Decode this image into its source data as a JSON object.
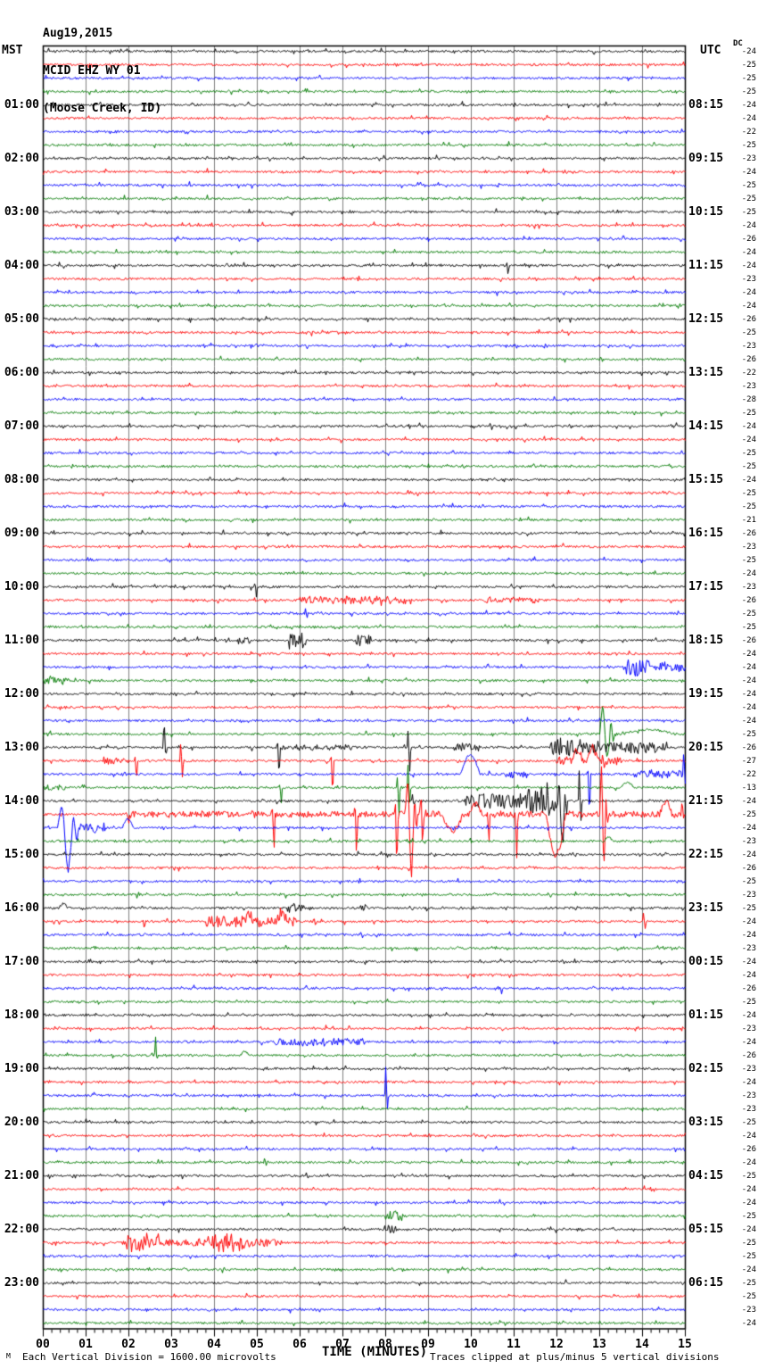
{
  "header": {
    "date": "Aug19,2015",
    "station": "MCID EHZ WY 01",
    "location": "(Moose Creek, ID)"
  },
  "axes": {
    "left_label": "MST",
    "right_label": "UTC",
    "dc_label": "DC"
  },
  "x_axis": {
    "title": "TIME (MINUTES)",
    "tick_labels": [
      "00",
      "01",
      "02",
      "03",
      "04",
      "05",
      "06",
      "07",
      "08",
      "09",
      "10",
      "11",
      "12",
      "13",
      "14",
      "15"
    ]
  },
  "footer": {
    "watermark": "M",
    "division_note": "Each Vertical Division = 1600.00 microvolts",
    "clip_note": "Traces clipped at plus/minus 5 vertical divisions"
  },
  "colors": {
    "trace_cycle": [
      "#000000",
      "#ff0000",
      "#0000ff",
      "#007a00"
    ],
    "grid": "#808080",
    "border": "#000000",
    "background": "#ffffff"
  },
  "chart_data": {
    "type": "line",
    "subtype": "helicorder_seismogram",
    "title": "MCID EHZ WY 01 (Moose Creek, ID) Aug19,2015",
    "station": "MCID EHZ WY 01",
    "date": "Aug19,2015",
    "location": "(Moose Creek, ID)",
    "lines": 96,
    "minutes_per_line": 15,
    "x_range": [
      0,
      15
    ],
    "x_major_tick": 1,
    "x_minor_tick": 0.2,
    "hour_label_row_step": 4,
    "left_hour_labels": [
      "01:00",
      "02:00",
      "03:00",
      "04:00",
      "05:00",
      "06:00",
      "07:00",
      "08:00",
      "09:00",
      "10:00",
      "11:00",
      "12:00",
      "13:00",
      "14:00",
      "15:00",
      "16:00",
      "17:00",
      "18:00",
      "19:00",
      "20:00",
      "21:00",
      "22:00",
      "23:00"
    ],
    "right_hour_labels": [
      "08:15",
      "09:15",
      "10:15",
      "11:15",
      "12:15",
      "13:15",
      "14:15",
      "15:15",
      "16:15",
      "17:15",
      "18:15",
      "19:15",
      "20:15",
      "21:15",
      "22:15",
      "23:15",
      "00:15",
      "01:15",
      "02:15",
      "03:15",
      "04:15",
      "05:15",
      "06:15"
    ],
    "dc_offsets": [
      -24,
      -25,
      -25,
      -25,
      -24,
      -24,
      -22,
      -25,
      -23,
      -24,
      -25,
      -25,
      -25,
      -24,
      -26,
      -24,
      -24,
      -23,
      -24,
      -24,
      -26,
      -25,
      -23,
      -26,
      -22,
      -23,
      -28,
      -25,
      -24,
      -24,
      -25,
      -25,
      -24,
      -25,
      -25,
      -21,
      -26,
      -23,
      -25,
      -24,
      -23,
      -26,
      -25,
      -25,
      -26,
      -24,
      -24,
      -24,
      -24,
      -24,
      -24,
      -25,
      -26,
      -27,
      -22,
      -13,
      -24,
      -25,
      -24,
      -23,
      -24,
      -26,
      -25,
      -23,
      -25,
      -24,
      -24,
      -23,
      -24,
      -24,
      -26,
      -25,
      -24,
      -23,
      -24,
      -26,
      -23,
      -24,
      -23,
      -23,
      -25,
      -24,
      -26,
      -24,
      -25,
      -24,
      -24,
      -25,
      -24,
      -25,
      -25,
      -24,
      -25,
      -25,
      -23,
      -24
    ],
    "events": [
      {
        "row": 16,
        "type": "spike",
        "t": 10.8,
        "up": 3,
        "down": 12
      },
      {
        "row": 40,
        "type": "spike",
        "t": 4.92,
        "up": 6,
        "down": 12
      },
      {
        "row": 41,
        "type": "burst",
        "t0": 6.0,
        "t1": 8.6,
        "amp": 4
      },
      {
        "row": 41,
        "type": "burst",
        "t0": 10.3,
        "t1": 11.6,
        "amp": 3
      },
      {
        "row": 42,
        "type": "spike",
        "t": 6.1,
        "up": 7,
        "down": 5
      },
      {
        "row": 44,
        "type": "burst",
        "t0": 4.55,
        "t1": 4.85,
        "amp": 4
      },
      {
        "row": 44,
        "type": "burst",
        "t0": 5.75,
        "t1": 6.15,
        "amp": 9
      },
      {
        "row": 44,
        "type": "burst",
        "t0": 7.3,
        "t1": 7.65,
        "amp": 6
      },
      {
        "row": 46,
        "type": "burst",
        "t0": 13.55,
        "t1": 14.15,
        "amp": 10
      },
      {
        "row": 46,
        "type": "burst",
        "t0": 14.3,
        "t1": 15,
        "amp": 5
      },
      {
        "row": 47,
        "type": "burst",
        "t0": 0,
        "t1": 0.6,
        "amp": 4
      },
      {
        "row": 51,
        "type": "spike",
        "t": 13.0,
        "up": 35,
        "down": 28,
        "osc": 3,
        "w": 0.35
      },
      {
        "row": 51,
        "type": "bump",
        "t": 13.55,
        "dur": 1.2,
        "amp": 5
      },
      {
        "row": 52,
        "type": "spike",
        "t": 2.8,
        "up": 38,
        "down": 8
      },
      {
        "row": 52,
        "type": "spike",
        "t": 5.45,
        "up": 6,
        "down": 38
      },
      {
        "row": 52,
        "type": "spike",
        "t": 8.5,
        "up": 20,
        "down": 30
      },
      {
        "row": 52,
        "type": "burst",
        "t0": 5.5,
        "t1": 7.2,
        "amp": 3
      },
      {
        "row": 52,
        "type": "burst",
        "t0": 9.6,
        "t1": 10.2,
        "amp": 4
      },
      {
        "row": 52,
        "type": "burst",
        "t0": 11.85,
        "t1": 12.7,
        "amp": 10
      },
      {
        "row": 52,
        "type": "burst",
        "t0": 12.7,
        "t1": 14.6,
        "amp": 6
      },
      {
        "row": 53,
        "type": "spike",
        "t": 2.12,
        "up": 4,
        "down": 22
      },
      {
        "row": 53,
        "type": "spike",
        "t": 3.19,
        "up": 25,
        "down": 18
      },
      {
        "row": 53,
        "type": "spike",
        "t": 6.7,
        "up": 6,
        "down": 45
      },
      {
        "row": 53,
        "type": "burst",
        "t0": 1.4,
        "t1": 1.9,
        "amp": 4
      },
      {
        "row": 53,
        "type": "bump",
        "t": 12.35,
        "dur": 0.25,
        "amp": 12
      },
      {
        "row": 53,
        "type": "bump",
        "t": 12.7,
        "dur": 0.25,
        "amp": 15
      },
      {
        "row": 53,
        "type": "spike",
        "t": 13.05,
        "up": 4,
        "down": 13
      },
      {
        "row": 53,
        "type": "burst",
        "t0": 11.95,
        "t1": 13.5,
        "amp": 4
      },
      {
        "row": 54,
        "type": "bump",
        "t": 9.75,
        "dur": 0.45,
        "amp": 22
      },
      {
        "row": 54,
        "type": "burst",
        "t0": 10.8,
        "t1": 11.3,
        "amp": 4
      },
      {
        "row": 54,
        "type": "spike",
        "t": 12.7,
        "up": 5,
        "down": 55
      },
      {
        "row": 54,
        "type": "spike",
        "t": 14.94,
        "up": 25,
        "down": 12
      },
      {
        "row": 54,
        "type": "burst",
        "t0": 13.8,
        "t1": 15,
        "amp": 4
      },
      {
        "row": 55,
        "type": "burst",
        "t0": 0,
        "t1": 0.5,
        "amp": 4
      },
      {
        "row": 55,
        "type": "spike",
        "t": 5.5,
        "up": 4,
        "down": 20
      },
      {
        "row": 55,
        "type": "spike",
        "t": 8.25,
        "up": 12,
        "down": 35
      },
      {
        "row": 55,
        "type": "spike",
        "t": 8.5,
        "up": 30,
        "down": 18
      },
      {
        "row": 55,
        "type": "bump",
        "t": 13.5,
        "dur": 0.3,
        "amp": 6
      },
      {
        "row": 56,
        "type": "spike",
        "t": 8.6,
        "up": 8,
        "down": 5
      },
      {
        "row": 56,
        "type": "burst",
        "t0": 9.85,
        "t1": 11.3,
        "amp": 8
      },
      {
        "row": 56,
        "type": "burst",
        "t0": 11.3,
        "t1": 12.15,
        "amp": 14
      },
      {
        "row": 56,
        "type": "spike",
        "t": 11.75,
        "up": 35,
        "down": 20
      },
      {
        "row": 56,
        "type": "spike",
        "t": 12.0,
        "up": 18,
        "down": 55,
        "osc": 2,
        "w": 0.25
      },
      {
        "row": 56,
        "type": "spike",
        "t": 12.5,
        "up": 40,
        "down": 25
      },
      {
        "row": 57,
        "type": "burst",
        "t0": 1.9,
        "t1": 15,
        "amp": 3
      },
      {
        "row": 57,
        "type": "spike",
        "t": 1.94,
        "up": 3,
        "down": 9
      },
      {
        "row": 57,
        "type": "spike",
        "t": 5.33,
        "up": 6,
        "down": 45
      },
      {
        "row": 57,
        "type": "spike",
        "t": 7.26,
        "up": 8,
        "down": 55
      },
      {
        "row": 57,
        "type": "spike",
        "t": 8.2,
        "up": 15,
        "down": 70
      },
      {
        "row": 57,
        "type": "spike",
        "t": 8.45,
        "up": 40,
        "down": 72,
        "osc": 3,
        "w": 0.3
      },
      {
        "row": 57,
        "type": "spike",
        "t": 8.8,
        "up": 30,
        "down": 40
      },
      {
        "row": 57,
        "type": "bump",
        "t": 9.3,
        "dur": 0.5,
        "amp": -18
      },
      {
        "row": 57,
        "type": "bump",
        "t": 9.95,
        "dur": 0.3,
        "amp": 12
      },
      {
        "row": 57,
        "type": "spike",
        "t": 10.35,
        "up": 5,
        "down": 38
      },
      {
        "row": 57,
        "type": "spike",
        "t": 11.0,
        "up": 6,
        "down": 55
      },
      {
        "row": 57,
        "type": "bump",
        "t": 11.75,
        "dur": 0.45,
        "amp": -45
      },
      {
        "row": 57,
        "type": "spike",
        "t": 13.0,
        "up": 55,
        "down": 60,
        "osc": 2,
        "w": 0.2
      },
      {
        "row": 57,
        "type": "bump",
        "t": 14.4,
        "dur": 0.3,
        "amp": 14
      },
      {
        "row": 57,
        "type": "spike",
        "t": 14.9,
        "up": 18,
        "down": 6
      },
      {
        "row": 58,
        "type": "spike",
        "t": 0.33,
        "up": 25,
        "down": 52,
        "osc": 4,
        "w": 0.5
      },
      {
        "row": 58,
        "type": "burst",
        "t0": 0.85,
        "t1": 1.5,
        "amp": 6
      },
      {
        "row": 58,
        "type": "bump",
        "t": 1.85,
        "dur": 0.25,
        "amp": 10
      },
      {
        "row": 59,
        "type": "bump",
        "t": 13.1,
        "dur": 0.2,
        "amp": 5
      },
      {
        "row": 64,
        "type": "bump",
        "t": 0.37,
        "dur": 0.2,
        "amp": 5
      },
      {
        "row": 64,
        "type": "burst",
        "t0": 5.55,
        "t1": 6.05,
        "amp": 5
      },
      {
        "row": 64,
        "type": "burst",
        "t0": 7.4,
        "t1": 7.6,
        "amp": 4
      },
      {
        "row": 65,
        "type": "spike",
        "t": 2.3,
        "up": 2,
        "down": 8
      },
      {
        "row": 65,
        "type": "burst",
        "t0": 3.8,
        "t1": 5.9,
        "amp": 6
      },
      {
        "row": 65,
        "type": "bump",
        "t": 4.7,
        "dur": 0.2,
        "amp": 8
      },
      {
        "row": 65,
        "type": "bump",
        "t": 5.45,
        "dur": 0.25,
        "amp": 9
      },
      {
        "row": 65,
        "type": "spike",
        "t": 6.3,
        "up": 5,
        "down": 4
      },
      {
        "row": 65,
        "type": "spike",
        "t": 14.0,
        "up": 12,
        "down": 8
      },
      {
        "row": 66,
        "type": "spike",
        "t": 7.4,
        "up": 4,
        "down": 3
      },
      {
        "row": 70,
        "type": "spike",
        "t": 10.65,
        "up": 3,
        "down": 6
      },
      {
        "row": 74,
        "type": "burst",
        "t0": 5.4,
        "t1": 7.5,
        "amp": 4
      },
      {
        "row": 75,
        "type": "spike",
        "t": 2.6,
        "up": 22,
        "down": 6
      },
      {
        "row": 75,
        "type": "bump",
        "t": 4.6,
        "dur": 0.2,
        "amp": 4
      },
      {
        "row": 78,
        "type": "spike",
        "t": 7.98,
        "up": 38,
        "down": 15
      },
      {
        "row": 83,
        "type": "spike",
        "t": 5.15,
        "up": 7,
        "down": 3
      },
      {
        "row": 87,
        "type": "burst",
        "t0": 8.0,
        "t1": 8.4,
        "amp": 5
      },
      {
        "row": 88,
        "type": "burst",
        "t0": 8.05,
        "t1": 8.3,
        "amp": 4
      },
      {
        "row": 89,
        "type": "burst",
        "t0": 1.85,
        "t1": 5.6,
        "amp": 4
      },
      {
        "row": 89,
        "type": "burst",
        "t0": 1.95,
        "t1": 2.7,
        "amp": 8
      },
      {
        "row": 89,
        "type": "burst",
        "t0": 3.85,
        "t1": 4.7,
        "amp": 8
      }
    ]
  }
}
